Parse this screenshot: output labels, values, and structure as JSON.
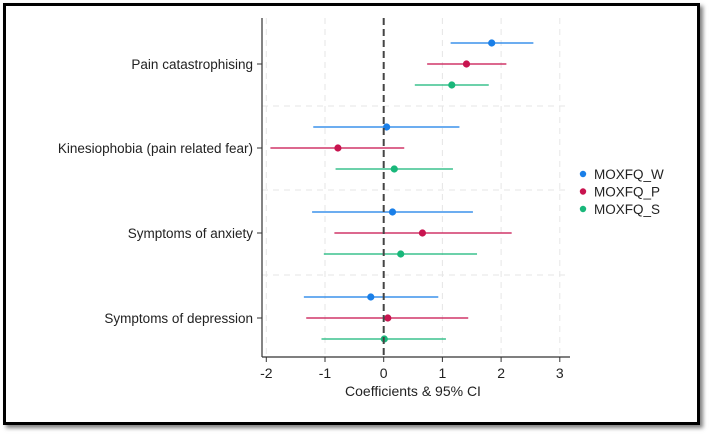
{
  "chart_data": {
    "type": "scatter",
    "subtype": "coefficient-plot",
    "xlabel": "Coefficients & 95% CI",
    "xlim": [
      -2.1,
      3.1
    ],
    "xticks": [
      -2,
      -1,
      0,
      1,
      2,
      3
    ],
    "reference_line": 0,
    "grid": true,
    "legend_position": "right",
    "categories": [
      "Pain catastrophising",
      "Kinesiophobia (pain related fear)",
      "Symptoms of anxiety",
      "Symptoms of depression"
    ],
    "series": [
      {
        "name": "MOXFQ_W",
        "color": "#1a7fe8",
        "estimate": [
          1.84,
          0.05,
          0.15,
          -0.22
        ],
        "lower": [
          1.14,
          -1.2,
          -1.22,
          -1.36
        ],
        "upper": [
          2.55,
          1.29,
          1.52,
          0.93
        ]
      },
      {
        "name": "MOXFQ_P",
        "color": "#c8144f",
        "estimate": [
          1.41,
          -0.78,
          0.66,
          0.07
        ],
        "lower": [
          0.74,
          -1.93,
          -0.84,
          -1.32
        ],
        "upper": [
          2.09,
          0.35,
          2.18,
          1.44
        ]
      },
      {
        "name": "MOXFQ_S",
        "color": "#19b77a",
        "estimate": [
          1.16,
          0.18,
          0.29,
          0.01
        ],
        "lower": [
          0.53,
          -0.82,
          -1.02,
          -1.06
        ],
        "upper": [
          1.79,
          1.18,
          1.59,
          1.06
        ]
      }
    ]
  }
}
